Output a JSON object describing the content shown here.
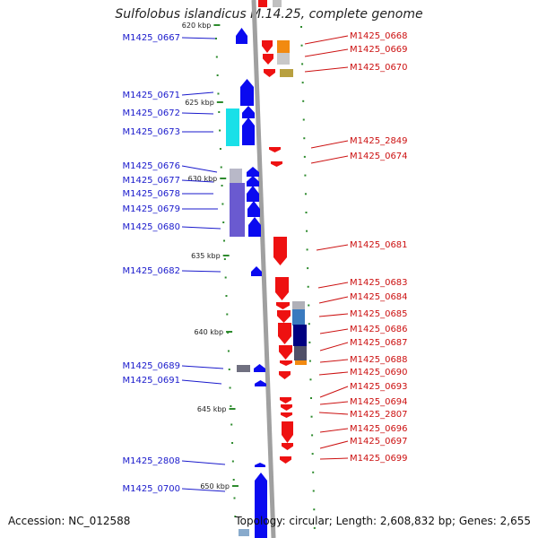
{
  "title": "Sulfolobus islandicus M.14.25, complete genome",
  "footer": {
    "accession": "Accession: NC_012588",
    "summary": "Topology: circular; Length: 2,608,832 bp; Genes: 2,655"
  },
  "scale": {
    "ticks": [
      "620 kbp",
      "625 kbp",
      "630 kbp",
      "635 kbp",
      "640 kbp",
      "645 kbp",
      "650 kbp"
    ]
  },
  "colors": {
    "backbone": "#a0a0a0",
    "forward_label": "#1a1acc",
    "reverse_label": "#cc1111",
    "tick": "#2e8b2e"
  },
  "labels_left": [
    "M1425_0667",
    "M1425_0671",
    "M1425_0672",
    "M1425_0673",
    "M1425_0676",
    "M1425_0677",
    "M1425_0678",
    "M1425_0679",
    "M1425_0680",
    "M1425_0682",
    "M1425_0689",
    "M1425_0691",
    "M1425_2808",
    "M1425_0700"
  ],
  "labels_right": [
    "M1425_0668",
    "M1425_0669",
    "M1425_0670",
    "M1425_2849",
    "M1425_0674",
    "M1425_0681",
    "M1425_0683",
    "M1425_0684",
    "M1425_0685",
    "M1425_0686",
    "M1425_0687",
    "M1425_0688",
    "M1425_0690",
    "M1425_0693",
    "M1425_0694",
    "M1425_2807",
    "M1425_0696",
    "M1425_0697",
    "M1425_0699"
  ]
}
